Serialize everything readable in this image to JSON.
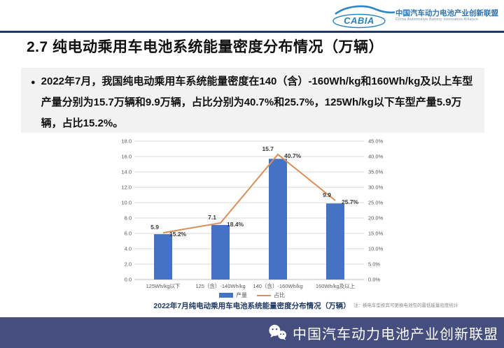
{
  "header": {
    "logo_text": "CABIA",
    "org_cn": "中国汽车动力电池产业创新联盟",
    "org_en": "China Automotive Battery Innovation Alliance"
  },
  "title": "2.7 纯电动乘用车电池系统能量密度分布情况（万辆）",
  "bullet": {
    "marker": "●",
    "text": "2022年7月，我国纯电动乘用车系统能量密度在140（含）-160Wh/kg和160Wh/kg及以上车型产量分别为15.7万辆和9.9万辆，占比分别为40.7%和25.7%，125Wh/kg以下车型产量5.9万辆，占比15.2%。"
  },
  "chart_data": {
    "type": "combo-bar-line",
    "categories": [
      "125Wh/kg以下",
      "125（含）-140Wh/kg",
      "140（含）-160Wh/kg",
      "160Wh/kg及以上"
    ],
    "series": [
      {
        "name": "产量",
        "type": "bar",
        "axis": "left",
        "values": [
          5.9,
          7.1,
          15.7,
          9.9
        ],
        "labels": [
          "5.9",
          "7.1",
          "15.7",
          "9.9"
        ]
      },
      {
        "name": "占比",
        "type": "line",
        "axis": "right",
        "values": [
          15.2,
          18.4,
          40.7,
          25.7
        ],
        "labels": [
          "15.2%",
          "18.4%",
          "40.7%",
          "25.7%"
        ]
      }
    ],
    "left_axis": {
      "min": 0,
      "max": 18,
      "step": 2,
      "ticks": [
        "0.0",
        "2.0",
        "4.0",
        "6.0",
        "8.0",
        "10.0",
        "12.0",
        "14.0",
        "16.0",
        "18.0"
      ]
    },
    "right_axis": {
      "min": 0,
      "max": 45,
      "step": 5,
      "ticks": [
        "0.0%",
        "5.0%",
        "10.0%",
        "15.0%",
        "20.0%",
        "25.0%",
        "30.0%",
        "35.0%",
        "40.0%",
        "45.0%"
      ]
    },
    "colors": {
      "bar": "#4472C4",
      "line": "#D9905A",
      "grid": "#D9D9D9",
      "axis": "#BFBFBF"
    },
    "grid": true,
    "legend_position": "bottom",
    "title": "2022年7月纯电动乘用车电池系统能量密度分布情况（万辆）",
    "note": "注：换电车型按其可更换电池包的最低能量密度统计"
  },
  "footer": {
    "org": "中国汽车动力电池产业创新联盟"
  }
}
